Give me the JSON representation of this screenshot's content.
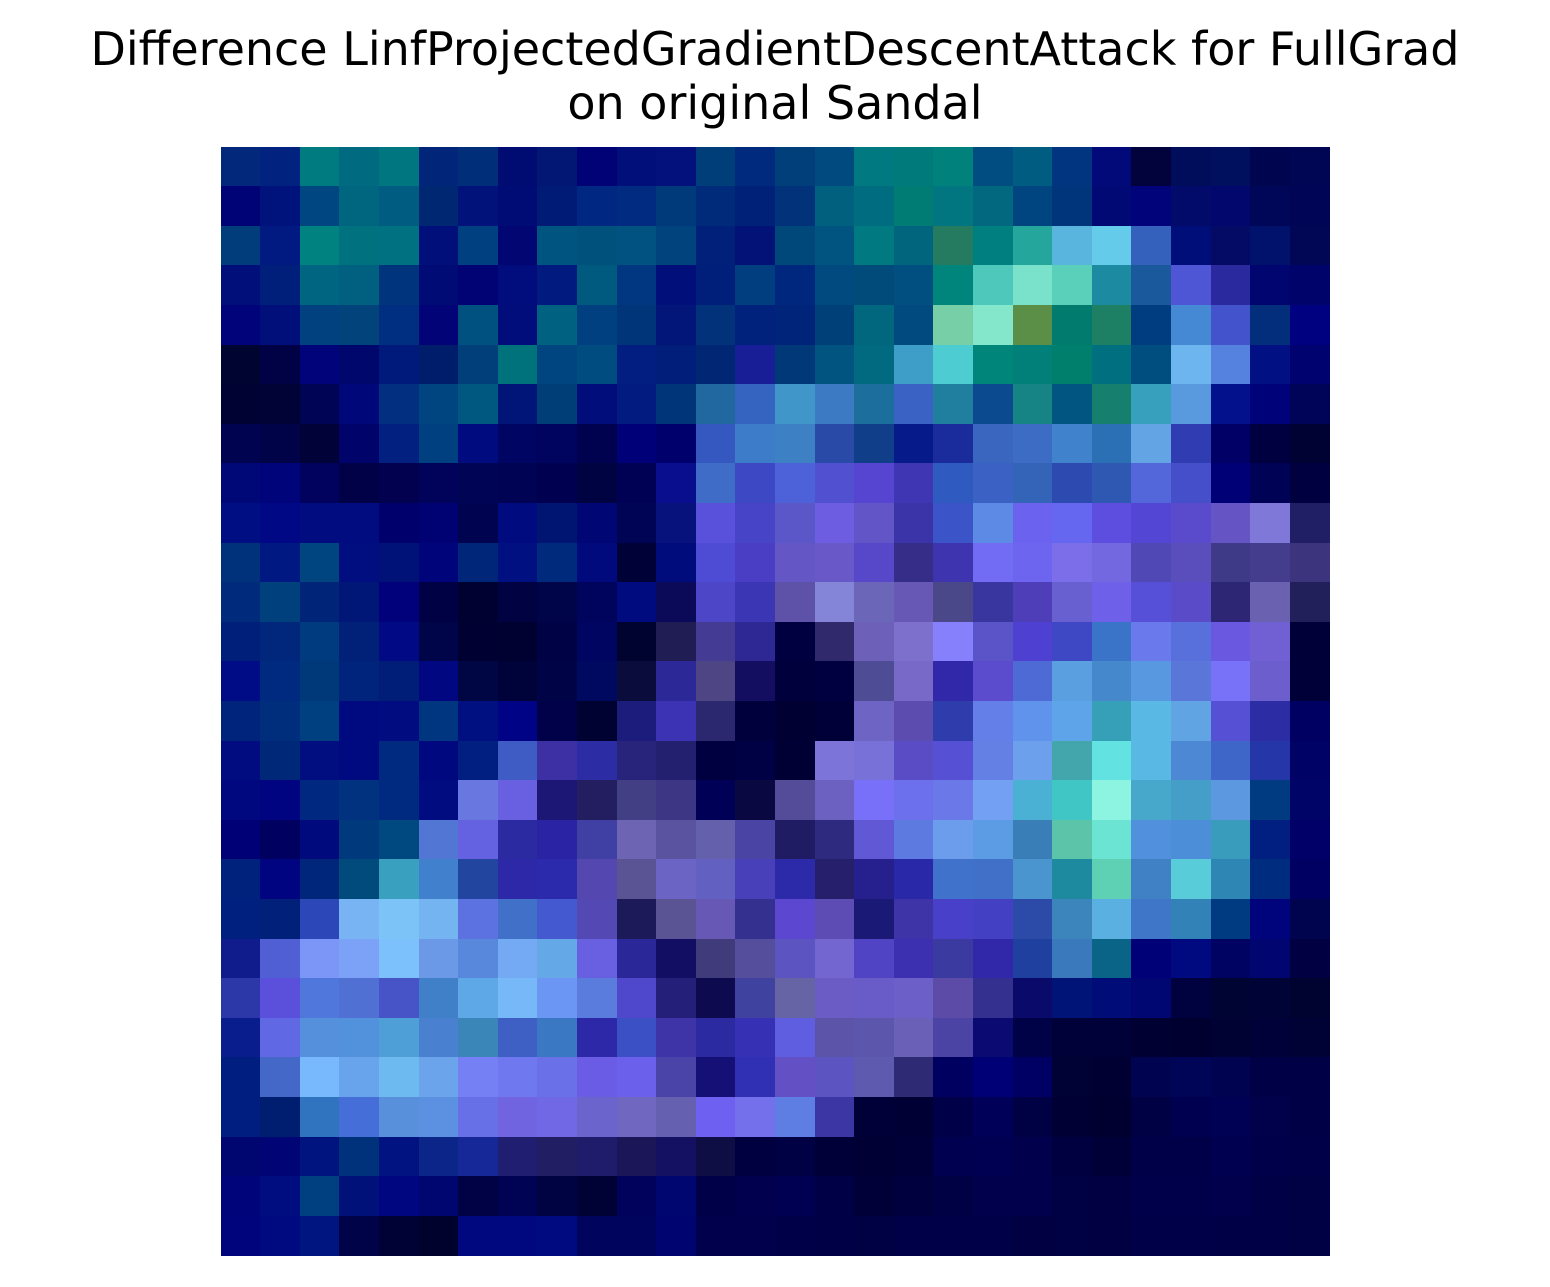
{
  "chart_data": {
    "type": "heatmap",
    "title_lines": [
      "Difference LinfProjectedGradientDescentAttack for FullGrad",
      "on original Sandal"
    ],
    "xlabel": "",
    "ylabel": "",
    "axes_visible": false,
    "grid": false,
    "legend": "none",
    "rows": 28,
    "cols": 28,
    "cells": [
      [
        "#01287a",
        "#01237f",
        "#007b80",
        "#006a80",
        "#007780",
        "#012679",
        "#012e78",
        "#010c72",
        "#021774",
        "#010275",
        "#000f79",
        "#03117c",
        "#003e7a",
        "#002a7e",
        "#003f79",
        "#014a80",
        "#007a80",
        "#007a7a",
        "#00817c",
        "#014c80",
        "#005c80",
        "#01357f",
        "#020a7a",
        "#02033d",
        "#000d5a",
        "#000f5e",
        "#000550",
        "#000654"
      ],
      [
        "#000375",
        "#00137d",
        "#004680",
        "#006680",
        "#005c80",
        "#002872",
        "#01137a",
        "#000c76",
        "#001b76",
        "#002882",
        "#002b81",
        "#003a7a",
        "#002b7b",
        "#002178",
        "#01327a",
        "#01607e",
        "#006c80",
        "#007c74",
        "#017580",
        "#016880",
        "#004580",
        "#00357c",
        "#010a74",
        "#01037b",
        "#020b6a",
        "#01076c",
        "#000758",
        "#000556"
      ],
      [
        "#003d7a",
        "#001a82",
        "#008380",
        "#00727f",
        "#007180",
        "#000f79",
        "#004080",
        "#010673",
        "#005480",
        "#01517d",
        "#015280",
        "#01437c",
        "#01207a",
        "#021276",
        "#00487a",
        "#015480",
        "#007a80",
        "#01657e",
        "#247b60",
        "#007f80",
        "#25a69c",
        "#59b4de",
        "#64cbeb",
        "#3361bc",
        "#000e7a",
        "#030b64",
        "#00126c",
        "#010754"
      ],
      [
        "#000f7a",
        "#001f7b",
        "#006580",
        "#016080",
        "#00357d",
        "#010b75",
        "#010375",
        "#010d7d",
        "#001a7f",
        "#005a80",
        "#003780",
        "#000f79",
        "#001f7b",
        "#003e80",
        "#00277e",
        "#004a80",
        "#004b79",
        "#004f80",
        "#00857c",
        "#4dc8bb",
        "#7ae2cb",
        "#5ad0bb",
        "#1c8aa0",
        "#1a5a9c",
        "#4e56d6",
        "#2a2a9e",
        "#000570",
        "#00046a"
      ],
      [
        "#000379",
        "#000f79",
        "#024180",
        "#01437a",
        "#002e80",
        "#010377",
        "#015180",
        "#010d7a",
        "#006180",
        "#004080",
        "#01357a",
        "#011678",
        "#01327a",
        "#00227c",
        "#00247a",
        "#004078",
        "#00677e",
        "#004a7f",
        "#76cfa6",
        "#84e6cb",
        "#5b8e46",
        "#007b6e",
        "#1d8064",
        "#003d80",
        "#4588d4",
        "#4353cc",
        "#022e7c",
        "#000180"
      ],
      [
        "#000430",
        "#000245",
        "#00037a",
        "#00076c",
        "#001a7c",
        "#001d6c",
        "#003f7a",
        "#00727c",
        "#004580",
        "#004b80",
        "#011e80",
        "#001e7a",
        "#002674",
        "#181e96",
        "#003878",
        "#015380",
        "#016a80",
        "#3f9ec8",
        "#4dcdd2",
        "#00857a",
        "#01807a",
        "#00806c",
        "#007080",
        "#004e80",
        "#6cb5ee",
        "#5582de",
        "#011083",
        "#000270"
      ],
      [
        "#000234",
        "#010235",
        "#000455",
        "#000879",
        "#022f80",
        "#004580",
        "#005780",
        "#011478",
        "#003e78",
        "#000d7b",
        "#021b80",
        "#01357a",
        "#2167a0",
        "#3464c0",
        "#4096c8",
        "#3c7bc4",
        "#1c6e9c",
        "#3a62c4",
        "#207f9e",
        "#0b4a8e",
        "#168384",
        "#005680",
        "#167f6e",
        "#37a0bc",
        "#5999de",
        "#04118c",
        "#000279",
        "#000458"
      ],
      [
        "#000450",
        "#010349",
        "#010238",
        "#00046a",
        "#012080",
        "#004080",
        "#010b80",
        "#000462",
        "#00045e",
        "#000250",
        "#000078",
        "#00006c",
        "#3457c0",
        "#3c7cc8",
        "#3e80c4",
        "#2a4aa8",
        "#113e88",
        "#061a8a",
        "#1a2c9c",
        "#3a66c0",
        "#3c6cc4",
        "#4182cc",
        "#2b6fb4",
        "#62a4e4",
        "#2f3cb2",
        "#000066",
        "#000040",
        "#000234"
      ],
      [
        "#000776",
        "#00047b",
        "#01025d",
        "#000146",
        "#01014f",
        "#010259",
        "#000454",
        "#000253",
        "#000050",
        "#000342",
        "#000155",
        "#090e8e",
        "#3e6cc7",
        "#3d49c4",
        "#4d62d8",
        "#5150d0",
        "#5545d0",
        "#3e36b2",
        "#2f5ac0",
        "#3b61c4",
        "#3364b7",
        "#2d4ab0",
        "#2f58b2",
        "#5367da",
        "#454fc9",
        "#000076",
        "#000355",
        "#000040"
      ],
      [
        "#000e84",
        "#000885",
        "#000c80",
        "#000c80",
        "#00006c",
        "#000172",
        "#00034f",
        "#000b7f",
        "#001472",
        "#000774",
        "#000454",
        "#07127c",
        "#5951dc",
        "#4844c8",
        "#5c57c8",
        "#6d5de0",
        "#6255c8",
        "#3a34a8",
        "#3b54c8",
        "#5d8ae4",
        "#6c62f0",
        "#6667f0",
        "#5e4ee0",
        "#5446d4",
        "#5a4acc",
        "#6454c4",
        "#7f78d8",
        "#201e64"
      ],
      [
        "#00327c",
        "#001882",
        "#004480",
        "#000e80",
        "#001278",
        "#00047a",
        "#002679",
        "#001080",
        "#002b7c",
        "#000a7d",
        "#000136",
        "#000c7c",
        "#4e4bd4",
        "#4a3ec4",
        "#6456c4",
        "#6858c8",
        "#5648c8",
        "#352d87",
        "#3e34b0",
        "#726cf4",
        "#6d64f0",
        "#7b6ee8",
        "#7468e0",
        "#5048b4",
        "#5a4ebc",
        "#3e3a88",
        "#443c8c",
        "#3c347c"
      ],
      [
        "#002a7c",
        "#00407c",
        "#002478",
        "#001777",
        "#01017c",
        "#000145",
        "#000130",
        "#000241",
        "#000448",
        "#00045d",
        "#000b80",
        "#0a0a59",
        "#4d47c8",
        "#3a36b4",
        "#5e52a8",
        "#8484d8",
        "#6c66b8",
        "#6658b4",
        "#4a4888",
        "#3a36a0",
        "#4e3eb8",
        "#6860d0",
        "#6e60e8",
        "#5650d8",
        "#5a4cc8",
        "#2c2674",
        "#6a62b0",
        "#22205a"
      ],
      [
        "#001f7a",
        "#00277c",
        "#003b80",
        "#012077",
        "#010985",
        "#000448",
        "#000132",
        "#000130",
        "#000246",
        "#000561",
        "#000230",
        "#201c54",
        "#443c94",
        "#2e2894",
        "#000040",
        "#302a6c",
        "#6c60b8",
        "#7c70cc",
        "#8680fc",
        "#5a54c8",
        "#4e40d0",
        "#3e48c4",
        "#3a74c8",
        "#6a7aec",
        "#5770dc",
        "#6a58e0",
        "#7060d4",
        "#000038"
      ],
      [
        "#000c85",
        "#002a80",
        "#00397a",
        "#00247c",
        "#001e78",
        "#000780",
        "#000644",
        "#00033a",
        "#000447",
        "#000960",
        "#0a0c3c",
        "#2c2898",
        "#4e4684",
        "#140e60",
        "#00003c",
        "#000040",
        "#4e4c94",
        "#7868c8",
        "#3028a8",
        "#5a4ccc",
        "#4e6ad4",
        "#5aa0e0",
        "#4688cc",
        "#5898e0",
        "#5a76d8",
        "#7872f8",
        "#6c5ecc",
        "#000038"
      ],
      [
        "#00237c",
        "#002d7c",
        "#004080",
        "#000a80",
        "#000c80",
        "#003680",
        "#001080",
        "#000385",
        "#000148",
        "#000232",
        "#1c1c7c",
        "#3c32b4",
        "#2c2870",
        "#00003c",
        "#000032",
        "#000038",
        "#6e64c4",
        "#5c4cb0",
        "#2e3cac",
        "#6480e8",
        "#6094ec",
        "#5ea4e8",
        "#36a0b8",
        "#5ab8e4",
        "#60a4e4",
        "#5650d4",
        "#2c2ca4",
        "#000062"
      ],
      [
        "#000c80",
        "#002878",
        "#010e80",
        "#000a80",
        "#002a80",
        "#000880",
        "#001f80",
        "#3e5cc4",
        "#3c30a4",
        "#2c2ca4",
        "#28247c",
        "#242070",
        "#000040",
        "#000044",
        "#000034",
        "#7c74d8",
        "#7872d8",
        "#5a4cc4",
        "#5650d4",
        "#6480e4",
        "#6ca0ec",
        "#42a6ac",
        "#62e2e0",
        "#5ab8e4",
        "#4c88d4",
        "#3d66c8",
        "#2436a8",
        "#000266"
      ],
      [
        "#000880",
        "#000480",
        "#012880",
        "#013280",
        "#002a80",
        "#000c80",
        "#6878e0",
        "#6860e0",
        "#1c1674",
        "#221e60",
        "#423f85",
        "#3c3684",
        "#000056",
        "#0a0840",
        "#544c98",
        "#6c60c0",
        "#7870f8",
        "#6c70ec",
        "#6a78e8",
        "#74a0f4",
        "#4ab0d4",
        "#40c6c4",
        "#8cf4e0",
        "#48a8cc",
        "#449ec8",
        "#5c98e0",
        "#003a80",
        "#000466"
      ],
      [
        "#000076",
        "#000060",
        "#000a7c",
        "#003a7c",
        "#004880",
        "#5276d4",
        "#6462e0",
        "#2c2aa0",
        "#2a24a4",
        "#4040a4",
        "#6e64b4",
        "#5a54a0",
        "#6460ac",
        "#4a44a4",
        "#201c64",
        "#2e2a80",
        "#6058d4",
        "#5c7ae0",
        "#6c9cec",
        "#5c9ce4",
        "#3a7eb8",
        "#5cc4a8",
        "#6ce4d4",
        "#5090dc",
        "#4c8ed8",
        "#3a9cbc",
        "#001f80",
        "#000068"
      ],
      [
        "#00217c",
        "#000480",
        "#00267c",
        "#004a7c",
        "#3aa0c0",
        "#4080cc",
        "#2246a0",
        "#2c28a8",
        "#2c2aac",
        "#5448b0",
        "#5a5494",
        "#6c64c4",
        "#6260c0",
        "#4840b8",
        "#2c2aa8",
        "#26206c",
        "#26208e",
        "#2828a8",
        "#4072cc",
        "#4070c8",
        "#4a94d0",
        "#1e8aa0",
        "#5ed0b4",
        "#4080c4",
        "#58ccd8",
        "#2e86b4",
        "#002c80",
        "#000062"
      ],
      [
        "#002080",
        "#00207a",
        "#2c48b8",
        "#78b4f4",
        "#7cc4f8",
        "#74b4f0",
        "#5c72e0",
        "#4070c8",
        "#4458d0",
        "#5448b4",
        "#1c1a58",
        "#5a5494",
        "#6658b4",
        "#343090",
        "#5c48d0",
        "#5c4cb4",
        "#1a1a76",
        "#3e34a8",
        "#4840c8",
        "#4440c4",
        "#2c4aa8",
        "#3c84bc",
        "#5ab0e0",
        "#4076c8",
        "#3282b8",
        "#003a80",
        "#00047c",
        "#00044e"
      ],
      [
        "#101c8c",
        "#5060d4",
        "#7c96f8",
        "#7ca2f8",
        "#7cc0fc",
        "#6c98e8",
        "#5888dc",
        "#74aaf4",
        "#64a8e8",
        "#6860e0",
        "#2a2898",
        "#120e64",
        "#403c7c",
        "#544e9c",
        "#5c54c0",
        "#7466d0",
        "#5044c4",
        "#3c30b0",
        "#3a3aa0",
        "#3028a8",
        "#2040a0",
        "#3a7abc",
        "#0a6488",
        "#000077",
        "#000a80",
        "#000362",
        "#000570",
        "#000042"
      ],
      [
        "#2c38a8",
        "#5a50dc",
        "#5078dc",
        "#5070d4",
        "#4654c8",
        "#4080c8",
        "#5ea8e8",
        "#76b8f8",
        "#6c96f4",
        "#5a7cdc",
        "#5048cc",
        "#24207a",
        "#0e0a50",
        "#4042a0",
        "#6664a4",
        "#6a5cc4",
        "#6a5cc8",
        "#6c60c8",
        "#5c4ca8",
        "#343090",
        "#0a0a6a",
        "#001478",
        "#000c78",
        "#000672",
        "#000240",
        "#000432",
        "#000336",
        "#000230"
      ],
      [
        "#0a1d8c",
        "#6068e4",
        "#5490dc",
        "#5292dc",
        "#4e9ed8",
        "#4a80d0",
        "#3a86b8",
        "#3e60c4",
        "#3a78c4",
        "#2c28a8",
        "#3a50c4",
        "#3e34a8",
        "#2c2aa0",
        "#3630b4",
        "#5f5de0",
        "#5c54a8",
        "#5c56ac",
        "#6a60b8",
        "#4c44a4",
        "#0a0a72",
        "#000248",
        "#000138",
        "#000138",
        "#000132",
        "#000030",
        "#000234",
        "#000138",
        "#000134"
      ],
      [
        "#001d80",
        "#4468c8",
        "#78b8fc",
        "#68a4ec",
        "#6cbaf0",
        "#6ca4ec",
        "#7480f4",
        "#7078f0",
        "#6a70e8",
        "#6a5ce4",
        "#6a60ec",
        "#4a44a8",
        "#141076",
        "#3030b4",
        "#6250c4",
        "#5c54c0",
        "#5e5ab0",
        "#2e2a74",
        "#000060",
        "#000076",
        "#000064",
        "#000134",
        "#000132",
        "#000450",
        "#000558",
        "#000450",
        "#000046",
        "#000046"
      ],
      [
        "#001d80",
        "#001e70",
        "#3074c0",
        "#466ed8",
        "#5890dc",
        "#5c90e0",
        "#6870e8",
        "#7064e0",
        "#7068e4",
        "#6a64cc",
        "#7068c0",
        "#6660b0",
        "#6e60f0",
        "#7470ec",
        "#5e7ee4",
        "#3c36a4",
        "#000038",
        "#000034",
        "#000048",
        "#000058",
        "#000044",
        "#000034",
        "#000030",
        "#000044",
        "#000050",
        "#000055",
        "#00004b",
        "#000046"
      ],
      [
        "#000670",
        "#000474",
        "#001480",
        "#00327c",
        "#001380",
        "#0b2688",
        "#162898",
        "#201e70",
        "#221e64",
        "#201c6c",
        "#1a1658",
        "#141062",
        "#0e0e44",
        "#000040",
        "#000044",
        "#000038",
        "#000034",
        "#000038",
        "#000050",
        "#000052",
        "#00004c",
        "#000040",
        "#000038",
        "#000048",
        "#000048",
        "#000050",
        "#00004a",
        "#000048"
      ],
      [
        "#00047a",
        "#000d80",
        "#004080",
        "#00127a",
        "#000580",
        "#000670",
        "#000245",
        "#000354",
        "#000342",
        "#000236",
        "#00025c",
        "#000670",
        "#000048",
        "#00004e",
        "#000052",
        "#000046",
        "#000038",
        "#00003e",
        "#000044",
        "#00004c",
        "#00004c",
        "#000044",
        "#000042",
        "#00004a",
        "#00004a",
        "#00004c",
        "#000046",
        "#000044"
      ],
      [
        "#00047c",
        "#000a80",
        "#001580",
        "#000348",
        "#000236",
        "#00022e",
        "#000880",
        "#000880",
        "#000a80",
        "#00045c",
        "#00045c",
        "#000470",
        "#00004c",
        "#00004c",
        "#000048",
        "#000046",
        "#000044",
        "#000048",
        "#000048",
        "#000048",
        "#000042",
        "#000044",
        "#000042",
        "#000048",
        "#000048",
        "#000046",
        "#000046",
        "#000044"
      ]
    ]
  }
}
